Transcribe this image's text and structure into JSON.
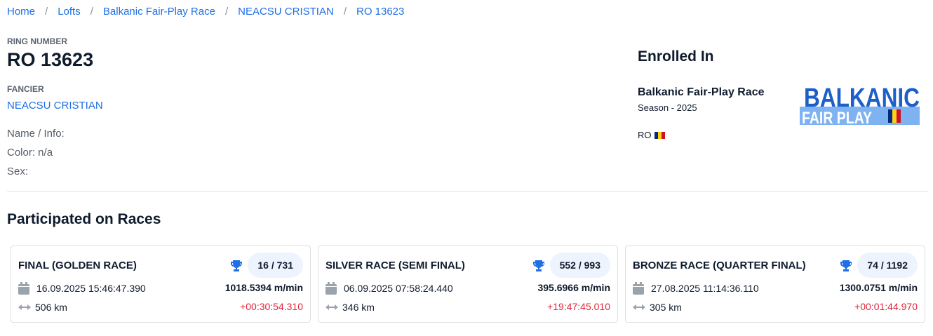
{
  "breadcrumb": [
    "Home",
    "Lofts",
    "Balkanic Fair-Play Race",
    "NEACSU CRISTIAN",
    "RO 13623"
  ],
  "ring": {
    "label": "RING NUMBER",
    "value": "RO 13623"
  },
  "fancier": {
    "label": "FANCIER",
    "value": "NEACSU CRISTIAN"
  },
  "info": [
    "Name / Info:",
    "Color: n/a",
    "Sex:"
  ],
  "enrolled": {
    "title": "Enrolled In",
    "race": "Balkanic Fair-Play Race",
    "season": "Season - 2025",
    "country": "RO",
    "flag_colors": [
      "#002b7f",
      "#fcd116",
      "#ce1126"
    ],
    "logo_text": "BALKANIC",
    "logo_sub": "FAIR PLAY",
    "logo_side": "ROMANIA"
  },
  "races_title": "Participated on Races",
  "races": [
    {
      "name": "FINAL (GOLDEN RACE)",
      "rank": "16 / 731",
      "date": "16.09.2025 15:46:47.390",
      "speed": "1018.5394 m/min",
      "distance": "506 km",
      "delta": "+00:30:54.310"
    },
    {
      "name": "SILVER RACE (SEMI FINAL)",
      "rank": "552 / 993",
      "date": "06.09.2025 07:58:24.440",
      "speed": "395.6966 m/min",
      "distance": "346 km",
      "delta": "+19:47:45.010"
    },
    {
      "name": "BRONZE RACE (QUARTER FINAL)",
      "rank": "74 / 1192",
      "date": "27.08.2025 11:14:36.110",
      "speed": "1300.0751 m/min",
      "distance": "305 km",
      "delta": "+00:01:44.970"
    }
  ],
  "colors": {
    "link": "#1f6fe5",
    "delta": "#e0263b",
    "trophy": "#1f6fe5"
  }
}
